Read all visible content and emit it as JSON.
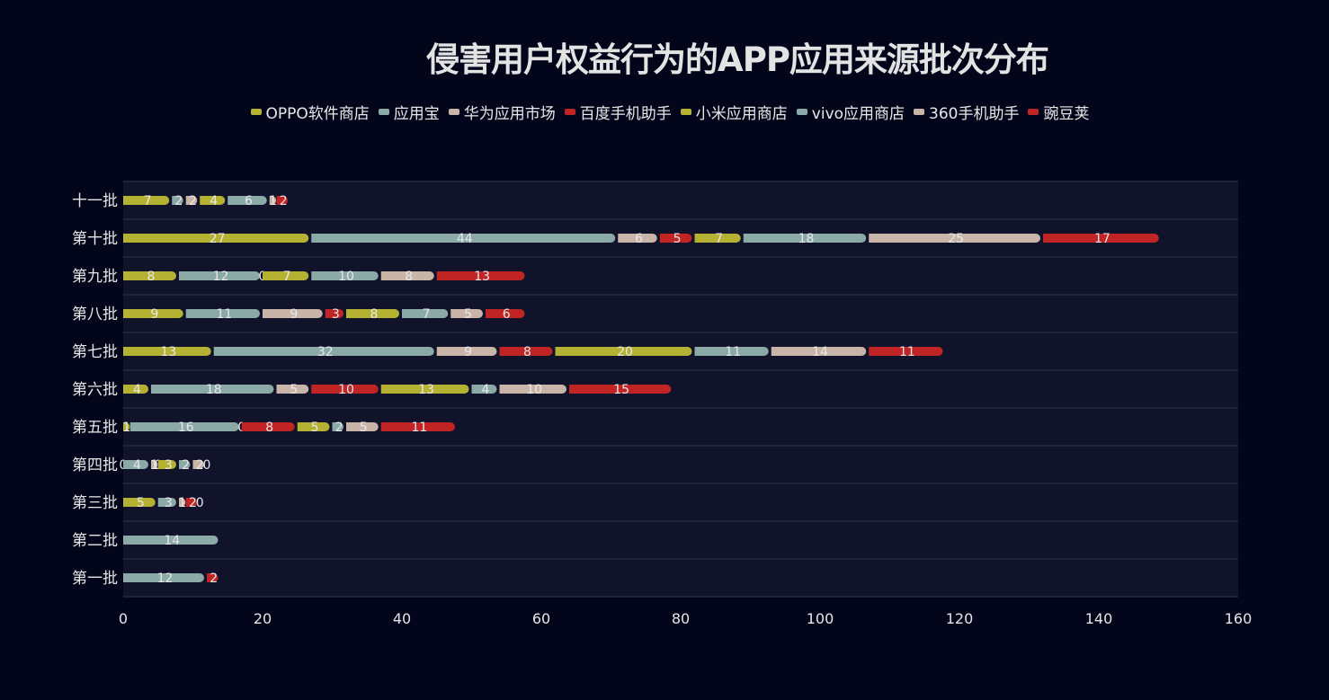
{
  "chart_data": {
    "type": "bar",
    "orientation": "horizontal",
    "stacked": true,
    "title": "侵害用户权益行为的APP应用来源批次分布",
    "xlabel": "",
    "ylabel": "",
    "xlim": [
      0,
      160
    ],
    "xticks": [
      0,
      20,
      40,
      60,
      80,
      100,
      120,
      140,
      160
    ],
    "grid": true,
    "legend_position": "top",
    "categories": [
      "第一批",
      "第二批",
      "第三批",
      "第四批",
      "第五批",
      "第六批",
      "第七批",
      "第八批",
      "第九批",
      "第十批",
      "十一批"
    ],
    "series": [
      {
        "name": "OPPO软件商店",
        "color": "#b5b233",
        "values": [
          0,
          0,
          5,
          0,
          1,
          4,
          13,
          9,
          8,
          27,
          7
        ]
      },
      {
        "name": "应用宝",
        "color": "#8aa9a7",
        "values": [
          12,
          14,
          3,
          4,
          16,
          18,
          32,
          11,
          12,
          44,
          2
        ]
      },
      {
        "name": "华为应用市场",
        "color": "#c9b5a8",
        "values": [
          0,
          0,
          1,
          1,
          0,
          5,
          9,
          9,
          0,
          6,
          2
        ]
      },
      {
        "name": "百度手机助手",
        "color": "#c12424",
        "values": [
          2,
          0,
          2,
          0,
          8,
          10,
          8,
          3,
          0,
          5,
          0
        ]
      },
      {
        "name": "小米应用商店",
        "color": "#b5b233",
        "values": [
          0,
          0,
          0,
          3,
          5,
          13,
          20,
          8,
          7,
          7,
          4
        ]
      },
      {
        "name": "vivo应用商店",
        "color": "#8aa9a7",
        "values": [
          0,
          0,
          0,
          2,
          2,
          4,
          11,
          7,
          10,
          18,
          6
        ]
      },
      {
        "name": "360手机助手",
        "color": "#c9b5a8",
        "values": [
          0,
          0,
          0,
          2,
          5,
          10,
          14,
          5,
          8,
          25,
          1
        ]
      },
      {
        "name": "豌豆荚",
        "color": "#c12424",
        "values": [
          0,
          0,
          0,
          0,
          11,
          15,
          11,
          6,
          13,
          17,
          2
        ]
      }
    ]
  },
  "colors": {
    "background": "#03061a",
    "plot_background": "#10132a",
    "grid": "#1f2338"
  }
}
